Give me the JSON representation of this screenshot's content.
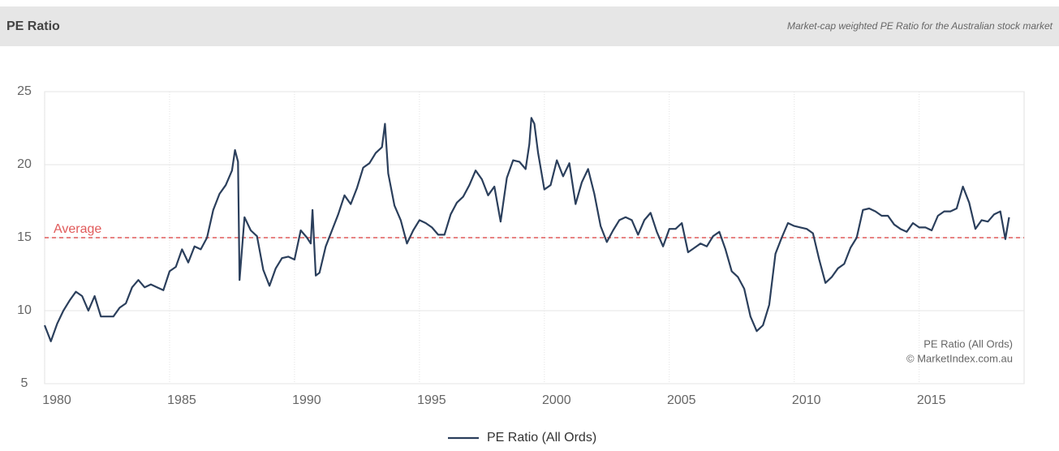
{
  "chart_data": {
    "type": "line",
    "title": "PE Ratio",
    "subtitle": "Market-cap weighted PE Ratio for the Australian stock market",
    "x": [
      1980,
      1980.25,
      1980.5,
      1980.75,
      1981,
      1981.25,
      1981.5,
      1981.75,
      1982,
      1982.25,
      1982.5,
      1982.75,
      1983,
      1983.25,
      1983.5,
      1983.75,
      1984,
      1984.25,
      1984.5,
      1984.75,
      1985,
      1985.25,
      1985.5,
      1985.75,
      1986,
      1986.25,
      1986.5,
      1986.75,
      1987,
      1987.25,
      1987.5,
      1987.62,
      1987.74,
      1987.8,
      1988,
      1988.25,
      1988.5,
      1988.75,
      1989,
      1989.25,
      1989.5,
      1989.75,
      1990,
      1990.25,
      1990.5,
      1990.65,
      1990.72,
      1990.85,
      1991,
      1991.25,
      1991.5,
      1991.75,
      1992,
      1992.25,
      1992.5,
      1992.75,
      1993,
      1993.25,
      1993.5,
      1993.62,
      1993.75,
      1994,
      1994.25,
      1994.5,
      1994.75,
      1995,
      1995.25,
      1995.5,
      1995.75,
      1996,
      1996.25,
      1996.5,
      1996.75,
      1997,
      1997.25,
      1997.5,
      1997.75,
      1998,
      1998.25,
      1998.5,
      1998.75,
      1999,
      1999.25,
      1999.4,
      1999.48,
      1999.6,
      1999.75,
      2000,
      2000.25,
      2000.5,
      2000.75,
      2001,
      2001.25,
      2001.5,
      2001.75,
      2002,
      2002.25,
      2002.5,
      2002.75,
      2003,
      2003.25,
      2003.5,
      2003.75,
      2004,
      2004.25,
      2004.5,
      2004.75,
      2005,
      2005.25,
      2005.5,
      2005.75,
      2006,
      2006.25,
      2006.5,
      2006.75,
      2007,
      2007.25,
      2007.5,
      2007.75,
      2008,
      2008.25,
      2008.5,
      2008.75,
      2009,
      2009.25,
      2009.5,
      2009.75,
      2010,
      2010.25,
      2010.5,
      2010.75,
      2011,
      2011.25,
      2011.5,
      2011.75,
      2012,
      2012.25,
      2012.5,
      2012.75,
      2013,
      2013.25,
      2013.5,
      2013.75,
      2014,
      2014.25,
      2014.5,
      2014.75,
      2015,
      2015.25,
      2015.5,
      2015.75,
      2016,
      2016.25,
      2016.5,
      2016.75,
      2017,
      2017.25,
      2017.5,
      2017.75,
      2018,
      2018.25,
      2018.45,
      2018.6
    ],
    "series": [
      {
        "name": "PE Ratio (All Ords)",
        "color": "#2b3f5c",
        "values": [
          9.0,
          7.9,
          9.1,
          10.0,
          10.7,
          11.3,
          11.0,
          10.0,
          11.0,
          9.6,
          9.6,
          9.6,
          10.2,
          10.5,
          11.6,
          12.1,
          11.6,
          11.8,
          11.6,
          11.4,
          12.7,
          13.0,
          14.2,
          13.3,
          14.4,
          14.2,
          15.0,
          16.9,
          18.0,
          18.6,
          19.6,
          21.0,
          20.2,
          12.1,
          16.4,
          15.5,
          15.1,
          12.8,
          11.7,
          12.9,
          13.6,
          13.7,
          13.5,
          15.5,
          15.0,
          14.6,
          16.9,
          12.4,
          12.6,
          14.4,
          15.5,
          16.6,
          17.9,
          17.3,
          18.4,
          19.8,
          20.1,
          20.8,
          21.2,
          22.8,
          19.4,
          17.2,
          16.2,
          14.6,
          15.5,
          16.2,
          16.0,
          15.7,
          15.2,
          15.2,
          16.6,
          17.4,
          17.8,
          18.6,
          19.6,
          19.0,
          17.9,
          18.5,
          16.1,
          19.1,
          20.3,
          20.2,
          19.7,
          21.4,
          23.2,
          22.8,
          20.8,
          18.3,
          18.6,
          20.3,
          19.2,
          20.1,
          17.3,
          18.8,
          19.7,
          18.0,
          15.8,
          14.7,
          15.5,
          16.2,
          16.4,
          16.2,
          15.2,
          16.2,
          16.7,
          15.4,
          14.4,
          15.6,
          15.6,
          16.0,
          14.0,
          14.3,
          14.6,
          14.4,
          15.1,
          15.4,
          14.2,
          12.7,
          12.3,
          11.5,
          9.6,
          8.6,
          9.0,
          10.4,
          13.9,
          15.0,
          16.0,
          15.8,
          15.7,
          15.6,
          15.3,
          13.5,
          11.9,
          12.3,
          12.9,
          13.2,
          14.3,
          15.0,
          16.9,
          17.0,
          16.8,
          16.5,
          16.5,
          15.9,
          15.6,
          15.4,
          16.0,
          15.7,
          15.7,
          15.5,
          16.5,
          16.8,
          16.8,
          17.0,
          18.5,
          17.4,
          15.6,
          16.2,
          16.1,
          16.6,
          16.8,
          14.9,
          16.4
        ]
      }
    ],
    "xlim": [
      1980,
      2019.2
    ],
    "xticks": [
      1980,
      1985,
      1990,
      1995,
      2000,
      2005,
      2010,
      2015
    ],
    "ylim": [
      5,
      25
    ],
    "yticks": [
      5,
      10,
      15,
      20,
      25
    ],
    "grid": true,
    "average": {
      "value": 15,
      "label": "Average",
      "color": "#e05a5a"
    },
    "credits": [
      "PE Ratio (All Ords)",
      "© MarketIndex.com.au"
    ],
    "legend": "bottom"
  }
}
